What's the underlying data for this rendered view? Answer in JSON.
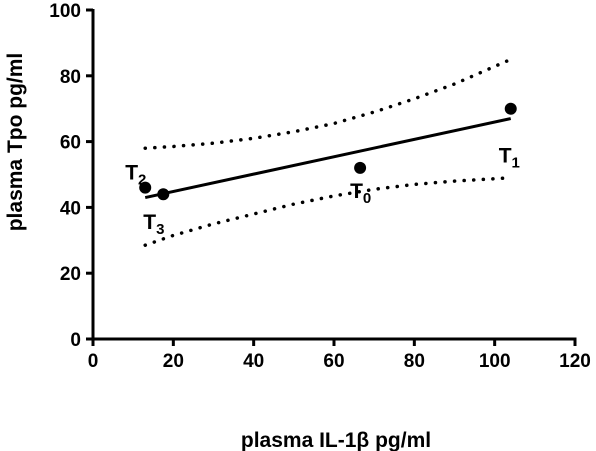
{
  "chart_data": {
    "type": "scatter",
    "title": "",
    "xlabel": "plasma IL-1β  pg/ml",
    "ylabel": "plasma Tpo pg/ml",
    "xlim": [
      0,
      120
    ],
    "ylim": [
      0,
      100
    ],
    "x_ticks": [
      "0",
      "20",
      "40",
      "60",
      "80",
      "100",
      "120"
    ],
    "y_ticks": [
      "0",
      "20",
      "40",
      "60",
      "80",
      "100"
    ],
    "grid": false,
    "points": [
      {
        "label": "T",
        "sub": "2",
        "x": 13,
        "y": 46
      },
      {
        "label": "T",
        "sub": "3",
        "x": 17.5,
        "y": 44
      },
      {
        "label": "T",
        "sub": "0",
        "x": 66.5,
        "y": 52
      },
      {
        "label": "T",
        "sub": "1",
        "x": 104,
        "y": 70
      }
    ],
    "regression_line": {
      "x": [
        13,
        104
      ],
      "y": [
        43,
        67
      ]
    },
    "confidence_band": {
      "upper": {
        "x": [
          13,
          20,
          30,
          40,
          50,
          60,
          70,
          80,
          90,
          104
        ],
        "y": [
          58,
          58.5,
          59.5,
          61,
          63,
          65.5,
          69,
          73,
          77.5,
          85
        ]
      },
      "lower": {
        "x": [
          13,
          20,
          30,
          40,
          50,
          60,
          70,
          80,
          90,
          104
        ],
        "y": [
          28.5,
          31.5,
          35,
          38,
          41,
          43.5,
          45.5,
          47,
          48,
          49
        ]
      }
    },
    "colors": {
      "marks": "#000000",
      "background": "#ffffff"
    }
  }
}
